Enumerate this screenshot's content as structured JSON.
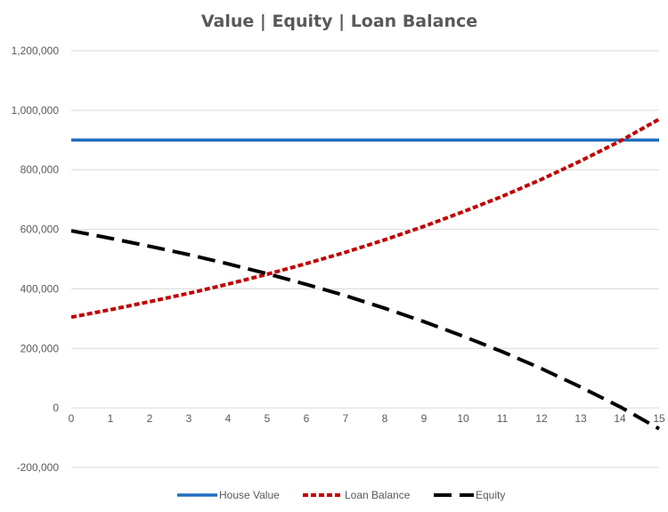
{
  "chart_data": {
    "type": "line",
    "title": "Value | Equity | Loan Balance",
    "x": [
      0,
      1,
      2,
      3,
      4,
      5,
      6,
      7,
      8,
      9,
      10,
      11,
      12,
      13,
      14,
      15
    ],
    "xticks": [
      "0",
      "1",
      "2",
      "3",
      "4",
      "5",
      "6",
      "7",
      "8",
      "9",
      "10",
      "11",
      "12",
      "13",
      "14",
      "15"
    ],
    "yticks": [
      {
        "value": -200000,
        "label": "-200,000"
      },
      {
        "value": 0,
        "label": "0"
      },
      {
        "value": 200000,
        "label": "200,000"
      },
      {
        "value": 400000,
        "label": "400,000"
      },
      {
        "value": 600000,
        "label": "600,000"
      },
      {
        "value": 800000,
        "label": "800,000"
      },
      {
        "value": 1000000,
        "label": "1,000,000"
      },
      {
        "value": 1200000,
        "label": "1,200,000"
      }
    ],
    "ylim": [
      -200000,
      1200000
    ],
    "xlim": [
      0,
      15
    ],
    "grid": true,
    "legend_position": "bottom",
    "series": [
      {
        "name": "House Value",
        "color": "#1f6fbf",
        "style": "solid",
        "values": [
          900000,
          900000,
          900000,
          900000,
          900000,
          900000,
          900000,
          900000,
          900000,
          900000,
          900000,
          900000,
          900000,
          900000,
          900000,
          900000
        ]
      },
      {
        "name": "Loan Balance",
        "color": "#c00000",
        "style": "dotted",
        "values": [
          305000,
          330000,
          357000,
          385000,
          416000,
          449000,
          485000,
          523000,
          565000,
          610000,
          659000,
          711000,
          768000,
          830000,
          896000,
          970000
        ]
      },
      {
        "name": "Equity",
        "color": "#000000",
        "style": "dashed",
        "values": [
          595000,
          570000,
          543000,
          515000,
          484000,
          451000,
          415000,
          377000,
          335000,
          290000,
          241000,
          189000,
          132000,
          70000,
          4000,
          -70000
        ]
      }
    ]
  }
}
